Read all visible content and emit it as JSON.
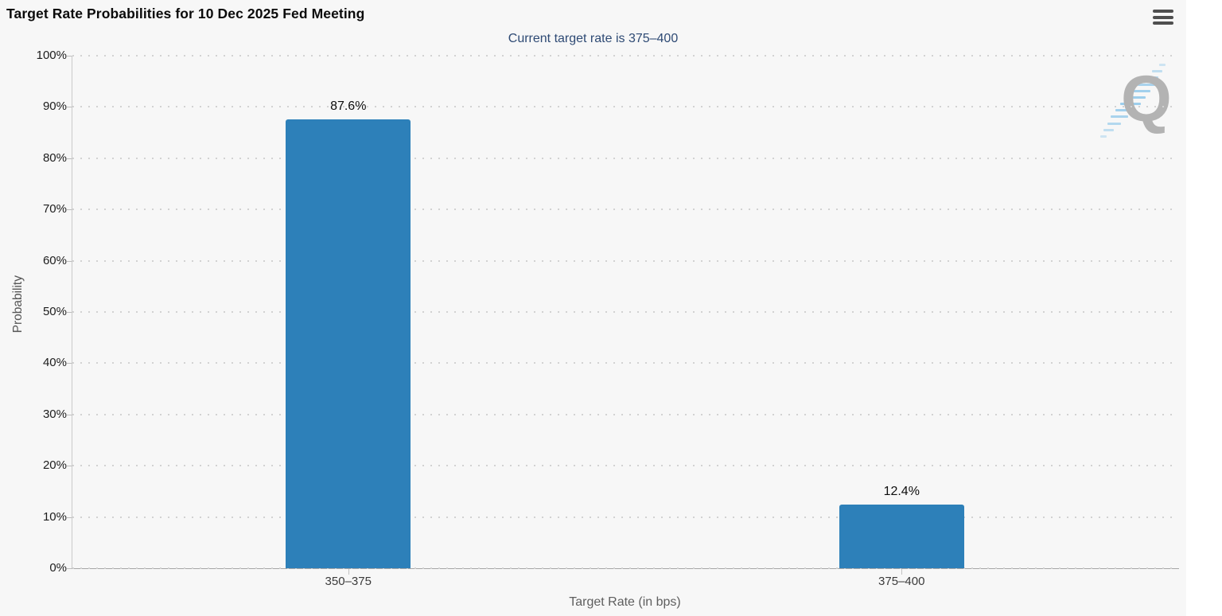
{
  "header": {
    "menu_icon": "hamburger-menu-icon"
  },
  "chart_data": {
    "type": "bar",
    "title": "Target Rate Probabilities for 10 Dec 2025 Fed Meeting",
    "subtitle": "Current target rate is 375–400",
    "categories": [
      "350–375",
      "375–400"
    ],
    "values": [
      87.6,
      12.4
    ],
    "value_labels": [
      "87.6%",
      "12.4%"
    ],
    "xlabel": "Target Rate (in bps)",
    "ylabel": "Probability",
    "ylim": [
      0,
      100
    ],
    "ytick_step": 10,
    "ytick_labels": [
      "0%",
      "10%",
      "20%",
      "30%",
      "40%",
      "50%",
      "60%",
      "70%",
      "80%",
      "90%",
      "100%"
    ],
    "grid": "dotted-horizontal",
    "legend": "none",
    "colors": {
      "bar": "#2d80b9",
      "subtitle_text": "#2e4a74",
      "chart_background": "#f7f7f7",
      "gridline": "#d2d2d2",
      "watermark_q": "#b3b3b3",
      "watermark_dash": "#7fc0e8"
    },
    "watermark": "Q"
  }
}
